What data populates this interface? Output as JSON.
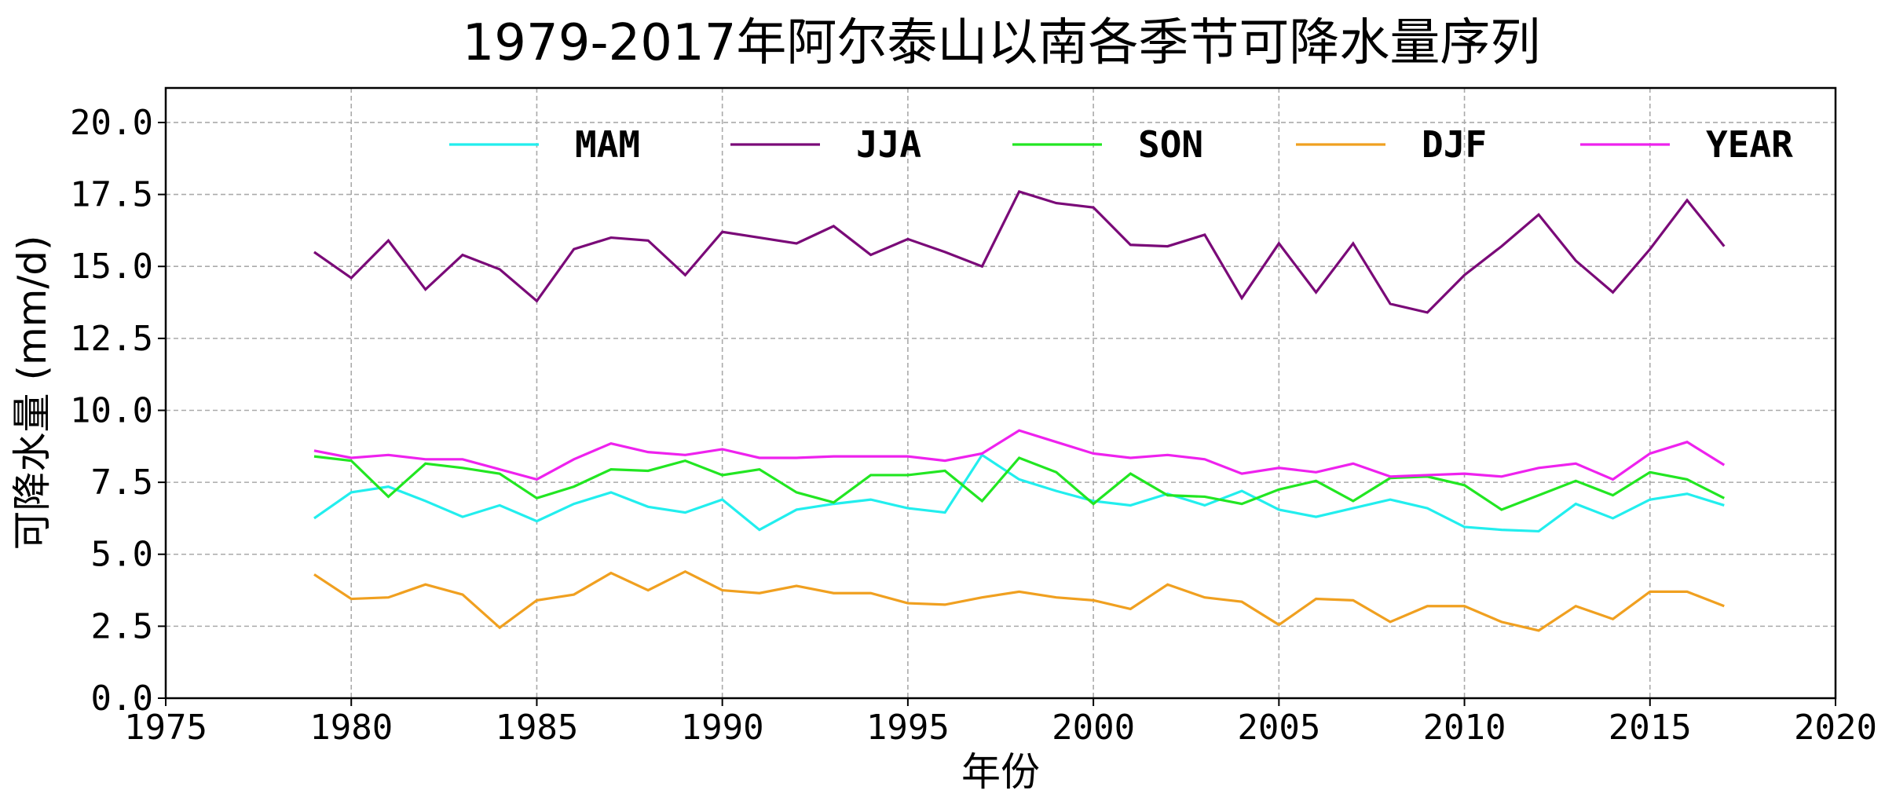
{
  "chart_data": {
    "type": "line",
    "title": "1979-2017年阿尔泰山以南各季节可降水量序列",
    "xlabel": "年份",
    "ylabel": "可降水量 (mm/d)",
    "xlim": [
      1975,
      2020
    ],
    "ylim": [
      0,
      21.2
    ],
    "xticks": [
      "1975",
      "1980",
      "1985",
      "1990",
      "1995",
      "2000",
      "2005",
      "2010",
      "2015",
      "2020"
    ],
    "yticks": [
      "0.0",
      "2.5",
      "5.0",
      "7.5",
      "10.0",
      "12.5",
      "15.0",
      "17.5",
      "20.0"
    ],
    "grid": true,
    "legend_position": "top",
    "x": [
      1979,
      1980,
      1981,
      1982,
      1983,
      1984,
      1985,
      1986,
      1987,
      1988,
      1989,
      1990,
      1991,
      1992,
      1993,
      1994,
      1995,
      1996,
      1997,
      1998,
      1999,
      2000,
      2001,
      2002,
      2003,
      2004,
      2005,
      2006,
      2007,
      2008,
      2009,
      2010,
      2011,
      2012,
      2013,
      2014,
      2015,
      2016,
      2017
    ],
    "series": [
      {
        "name": "MAM",
        "color": "#22eeee",
        "values": [
          6.25,
          7.15,
          7.35,
          6.85,
          6.3,
          6.7,
          6.15,
          6.75,
          7.15,
          6.65,
          6.45,
          6.9,
          5.85,
          6.55,
          6.75,
          6.9,
          6.6,
          6.45,
          8.45,
          7.6,
          7.2,
          6.85,
          6.7,
          7.1,
          6.7,
          7.2,
          6.55,
          6.3,
          6.6,
          6.9,
          6.6,
          5.95,
          5.85,
          5.8,
          6.75,
          6.25,
          6.9,
          7.1,
          6.7
        ]
      },
      {
        "name": "JJA",
        "color": "#7a0a78",
        "values": [
          15.5,
          14.6,
          15.9,
          14.2,
          15.4,
          14.9,
          13.8,
          15.6,
          16.0,
          15.9,
          14.7,
          16.2,
          16.0,
          15.8,
          16.4,
          15.4,
          15.95,
          15.5,
          15.0,
          17.6,
          17.2,
          17.05,
          15.75,
          15.7,
          16.1,
          13.9,
          15.8,
          14.1,
          15.8,
          13.7,
          13.4,
          14.7,
          15.7,
          16.8,
          15.2,
          14.1,
          15.6,
          17.3,
          15.7
        ]
      },
      {
        "name": "SON",
        "color": "#22e622",
        "values": [
          8.4,
          8.25,
          7.0,
          8.15,
          8.0,
          7.8,
          6.95,
          7.35,
          7.95,
          7.9,
          8.25,
          7.75,
          7.95,
          7.15,
          6.8,
          7.75,
          7.75,
          7.9,
          6.85,
          8.35,
          7.85,
          6.75,
          7.8,
          7.05,
          7.0,
          6.75,
          7.25,
          7.55,
          6.85,
          7.65,
          7.7,
          7.4,
          6.55,
          7.05,
          7.55,
          7.05,
          7.85,
          7.6,
          6.95
        ]
      },
      {
        "name": "DJF",
        "color": "#f0a020",
        "values": [
          4.3,
          3.45,
          3.5,
          3.95,
          3.6,
          2.45,
          3.4,
          3.6,
          4.35,
          3.75,
          4.4,
          3.75,
          3.65,
          3.9,
          3.65,
          3.65,
          3.3,
          3.25,
          3.5,
          3.7,
          3.5,
          3.4,
          3.1,
          3.95,
          3.5,
          3.35,
          2.55,
          3.45,
          3.4,
          2.65,
          3.2,
          3.2,
          2.65,
          2.35,
          3.2,
          2.75,
          3.7,
          3.7,
          3.2
        ]
      },
      {
        "name": "YEAR",
        "color": "#ee22ee",
        "values": [
          8.6,
          8.35,
          8.45,
          8.3,
          8.3,
          7.95,
          7.6,
          8.3,
          8.85,
          8.55,
          8.45,
          8.65,
          8.35,
          8.35,
          8.4,
          8.4,
          8.4,
          8.25,
          8.5,
          9.3,
          8.9,
          8.5,
          8.35,
          8.45,
          8.3,
          7.8,
          8.0,
          7.85,
          8.15,
          7.7,
          7.75,
          7.8,
          7.7,
          8.0,
          8.15,
          7.6,
          8.5,
          8.9,
          8.1
        ]
      }
    ]
  }
}
